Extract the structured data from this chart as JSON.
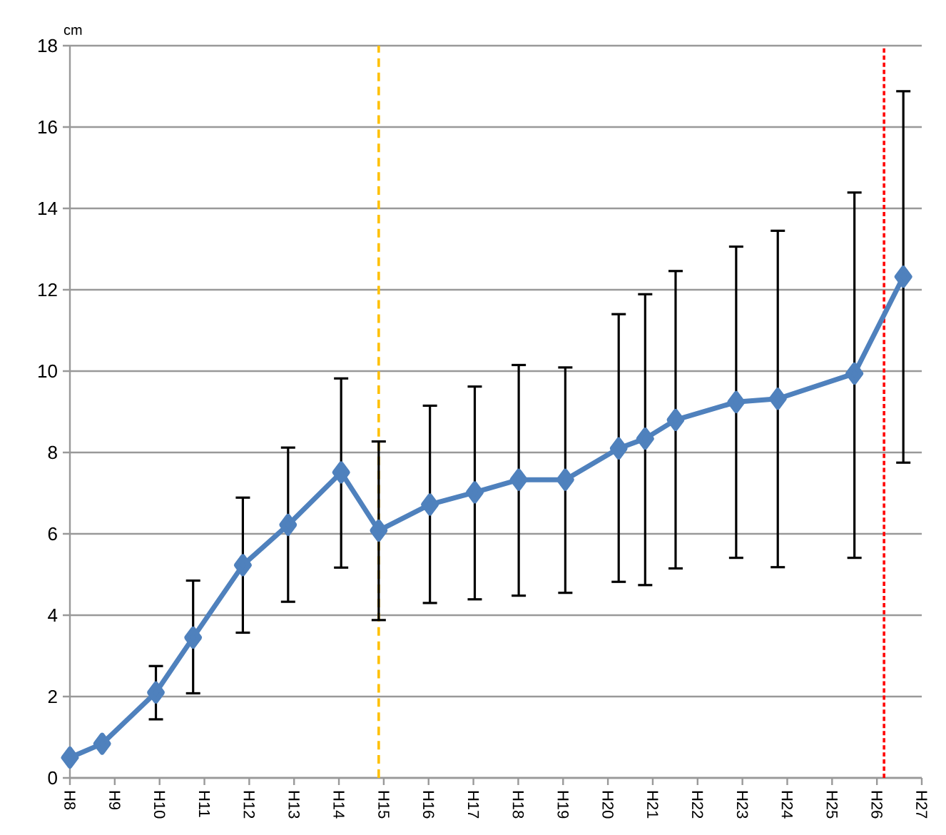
{
  "chart_data": {
    "type": "line",
    "ylabel": "cm",
    "x": [
      "1996-01-01",
      "1996-09-20",
      "1997-12-02",
      "1998-10-01",
      "1999-11-10",
      "2000-11-13",
      "2002-01-19",
      "2002-11-21",
      "2004-01-12",
      "2005-01-12",
      "2006-01-05",
      "2007-01-19",
      "2008-03-29",
      "2008-10-31",
      "2009-07-06",
      "2010-11-11",
      "2011-10-16",
      "2013-07-02",
      "2014-08-04"
    ],
    "values": [
      0.5,
      0.84,
      2.1,
      3.45,
      5.23,
      6.22,
      7.51,
      6.08,
      6.72,
      7.02,
      7.33,
      7.33,
      8.1,
      8.34,
      8.8,
      9.24,
      9.32,
      9.94,
      12.32
    ],
    "errors": [
      null,
      null,
      [
        1.44,
        2.75
      ],
      [
        2.08,
        4.85
      ],
      [
        3.57,
        6.89
      ],
      [
        4.33,
        8.12
      ],
      [
        5.17,
        9.82
      ],
      [
        3.88,
        8.27
      ],
      [
        4.3,
        9.15
      ],
      [
        4.39,
        9.62
      ],
      [
        4.48,
        10.15
      ],
      [
        4.55,
        10.09
      ],
      [
        4.82,
        11.4
      ],
      [
        4.74,
        11.89
      ],
      [
        5.15,
        12.46
      ],
      [
        5.41,
        13.06
      ],
      [
        5.18,
        13.45
      ],
      [
        5.41,
        14.39
      ],
      [
        7.75,
        16.88
      ]
    ],
    "color": "#4f81bd",
    "marker": "diamond",
    "line_style": "solid",
    "xlim": [
      "1996",
      "2015"
    ],
    "xticks": [
      {
        "value": "1996",
        "label": "H8"
      },
      {
        "value": "1997",
        "label": "H9"
      },
      {
        "value": "1998",
        "label": "H10"
      },
      {
        "value": "1999",
        "label": "H11"
      },
      {
        "value": "2000",
        "label": "H12"
      },
      {
        "value": "2001",
        "label": "H13"
      },
      {
        "value": "2002",
        "label": "H14"
      },
      {
        "value": "2003",
        "label": "H15"
      },
      {
        "value": "2004",
        "label": "H16"
      },
      {
        "value": "2005",
        "label": "H17"
      },
      {
        "value": "2006",
        "label": "H18"
      },
      {
        "value": "2007",
        "label": "H19"
      },
      {
        "value": "2008",
        "label": "H20"
      },
      {
        "value": "2009",
        "label": "H21"
      },
      {
        "value": "2010",
        "label": "H22"
      },
      {
        "value": "2011",
        "label": "H23"
      },
      {
        "value": "2012",
        "label": "H24"
      },
      {
        "value": "2013",
        "label": "H25"
      },
      {
        "value": "2014",
        "label": "H26"
      },
      {
        "value": "2015",
        "label": "H27"
      }
    ],
    "ylim": [
      0,
      18
    ],
    "yticks": [
      0,
      2,
      4,
      6,
      8,
      10,
      12,
      14,
      16,
      18
    ],
    "grid": "y",
    "ref_lines": [
      {
        "axis": "x",
        "value": "2002-11-21",
        "color": "#ffc000",
        "line_style": "dashed"
      },
      {
        "axis": "x",
        "value": "2014-02-28",
        "color": "#ff0000",
        "line_style": "dotted"
      }
    ]
  }
}
